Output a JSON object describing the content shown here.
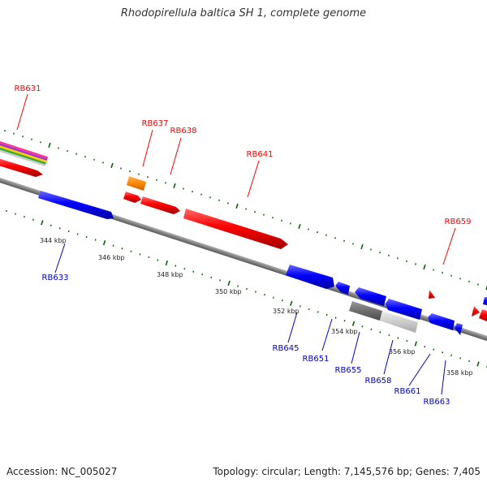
{
  "title": "Rhodopirellula baltica SH 1, complete genome",
  "accession": "Accession: NC_005027",
  "topology": "Topology: circular; Length: 7,145,576 bp; Genes: 7,405",
  "colors": {
    "forward": "#ff0000",
    "reverse": "#0000ff",
    "backbone": "#808080",
    "ticks": "#006600",
    "orange": "#ff8800",
    "gray_dark": "#777777",
    "gray_light": "#cccccc"
  },
  "scale_ticks": [
    "344 kbp",
    "346 kbp",
    "348 kbp",
    "350 kbp",
    "352 kbp",
    "354 kbp",
    "356 kbp",
    "358 kbp"
  ],
  "gene_labels": {
    "forward": [
      "RB631",
      "RB637",
      "RB638",
      "RB641",
      "RB659"
    ],
    "reverse": [
      "RB633",
      "RB645",
      "RB651",
      "RB655",
      "RB658",
      "RB661",
      "RB663"
    ]
  }
}
